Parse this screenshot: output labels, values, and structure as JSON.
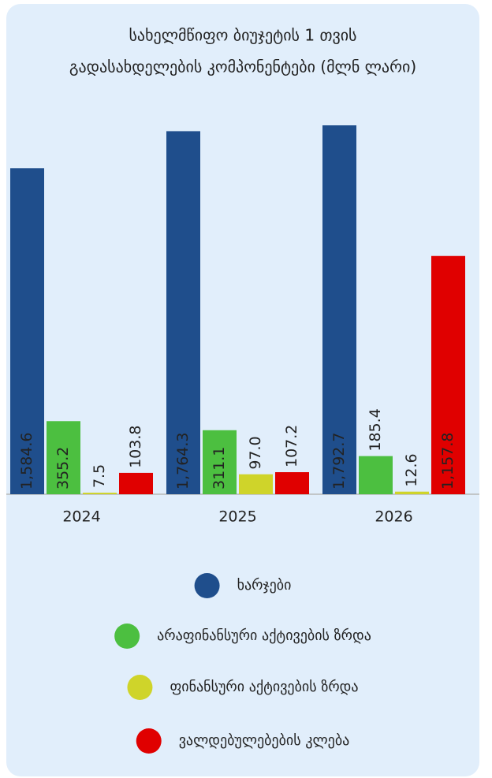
{
  "chart_data": {
    "type": "bar",
    "title": [
      "სახელმწიფო ბიუჯეტის 1 თვის",
      "გადასახდელების კომპონენტები (მლნ ლარი)"
    ],
    "categories": [
      "2024",
      "2025",
      "2026"
    ],
    "series": [
      {
        "name": "ხარჯები",
        "color": "#1f4e8c",
        "values": [
          1584.6,
          1764.3,
          1792.7
        ],
        "value_labels": [
          "1,584.6",
          "1,764.3",
          "1,792.7"
        ]
      },
      {
        "name": "არაფინანსური აქტივების ზრდა",
        "color": "#4cbf40",
        "values": [
          355.2,
          311.1,
          185.4
        ]
      },
      {
        "name": "ფინანსური აქტივების ზრდა",
        "color": "#cfd42a",
        "values": [
          7.5,
          97.0,
          12.6
        ],
        "value_labels": [
          "7.5",
          "97.0",
          "12.6"
        ]
      },
      {
        "name": "ვალდებულებების კლება",
        "color": "#e00000",
        "values": [
          103.8,
          107.2,
          1157.8
        ],
        "value_labels": [
          "103.8",
          "107.2",
          "1,157.8"
        ]
      }
    ]
  }
}
